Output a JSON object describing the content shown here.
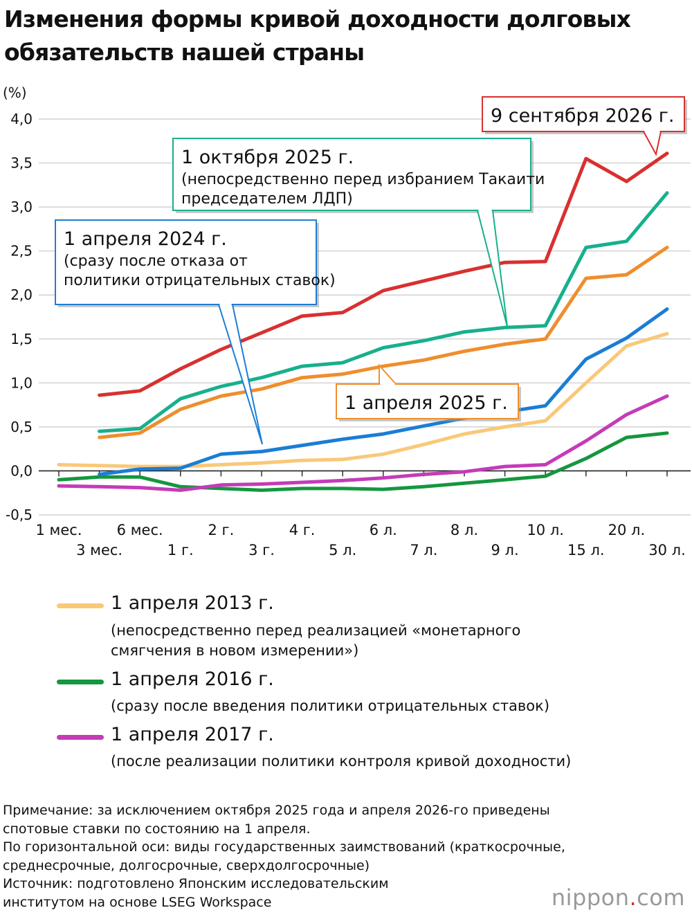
{
  "title": "Изменения формы кривой доходности долговых обязательств нашей страны",
  "chart_data": {
    "type": "line",
    "ylabel": "(%)",
    "ylim": [
      -0.5,
      4.0
    ],
    "yticks": [
      "4,0",
      "3,5",
      "3,0",
      "2,5",
      "2,0",
      "1,5",
      "1,0",
      "0,5",
      "0,0",
      "-0,5"
    ],
    "ytick_values": [
      4.0,
      3.5,
      3.0,
      2.5,
      2.0,
      1.5,
      1.0,
      0.5,
      0.0,
      -0.5
    ],
    "categories": [
      "1 мес.",
      "3 мес.",
      "6 мес.",
      "1 г.",
      "2 г.",
      "3 г.",
      "4 г.",
      "5 л.",
      "6 л.",
      "7 л.",
      "8 л.",
      "9 л.",
      "10 л.",
      "15 л.",
      "20 л.",
      "30 л."
    ],
    "grid": true,
    "series": [
      {
        "name": "1 апреля 2013 г.",
        "note": "(непосредственно перед реализацией «монетарного смягчения в новом измерении»)",
        "color": "#f9c878",
        "values": [
          0.07,
          0.06,
          0.05,
          0.05,
          0.07,
          0.09,
          0.12,
          0.13,
          0.19,
          0.3,
          0.42,
          0.5,
          0.57,
          1.0,
          1.42,
          1.56
        ]
      },
      {
        "name": "1 апреля 2016 г.",
        "note": "(сразу после введения политики отрицательных ставок)",
        "color": "#14973e",
        "values": [
          -0.1,
          -0.07,
          -0.07,
          -0.18,
          -0.2,
          -0.22,
          -0.2,
          -0.2,
          -0.21,
          -0.18,
          -0.14,
          -0.1,
          -0.06,
          0.14,
          0.38,
          0.43
        ]
      },
      {
        "name": "1 апреля 2017 г.",
        "note": "(после реализации политики контроля кривой доходности)",
        "color": "#c43bb8",
        "values": [
          -0.17,
          -0.18,
          -0.19,
          -0.22,
          -0.16,
          -0.15,
          -0.13,
          -0.11,
          -0.08,
          -0.04,
          -0.01,
          0.05,
          0.07,
          0.34,
          0.64,
          0.85
        ]
      },
      {
        "name": "1 апреля 2024 г.",
        "note": "(сразу после отказа от политики отрицательных ставок)",
        "color": "#1b7dd4",
        "values": [
          null,
          -0.04,
          0.02,
          0.03,
          0.19,
          0.22,
          0.29,
          0.36,
          0.42,
          0.51,
          0.6,
          0.67,
          0.74,
          1.27,
          1.51,
          1.84
        ]
      },
      {
        "name": "1 апреля 2025 г.",
        "note": "",
        "color": "#ef8e2d",
        "values": [
          null,
          0.38,
          0.43,
          0.7,
          0.85,
          0.93,
          1.06,
          1.1,
          1.19,
          1.26,
          1.36,
          1.44,
          1.5,
          2.19,
          2.23,
          2.54
        ]
      },
      {
        "name": "1 октября 2025 г.",
        "note": "(непосредственно перед избранием Такаити председателем ЛДП)",
        "color": "#17b08c",
        "values": [
          null,
          0.45,
          0.48,
          0.82,
          0.96,
          1.06,
          1.19,
          1.23,
          1.4,
          1.48,
          1.58,
          1.63,
          1.65,
          2.54,
          2.61,
          3.16
        ]
      },
      {
        "name": "9 сентября 2026 г.",
        "note": "",
        "color": "#d8302f",
        "values": [
          null,
          0.86,
          0.91,
          1.16,
          1.38,
          1.57,
          1.76,
          1.8,
          2.05,
          2.16,
          2.27,
          2.37,
          2.38,
          3.55,
          3.29,
          3.61
        ]
      }
    ]
  },
  "notes": [
    "Примечание: за исключением октября 2025 года и апреля 2026-го приведены",
    "спотовые ставки по состоянию на 1 апреля.",
    "По горизонтальной оси: виды государственных заимствований (краткосрочные,",
    "среднесрочные, долгосрочные, сверхдолгосрочные)",
    "Источник: подготовлено Японским исследовательским",
    "институтом на основе LSEG Workspace"
  ],
  "logo": {
    "text": "nippon",
    "dot": ".",
    "suffix": "com"
  }
}
